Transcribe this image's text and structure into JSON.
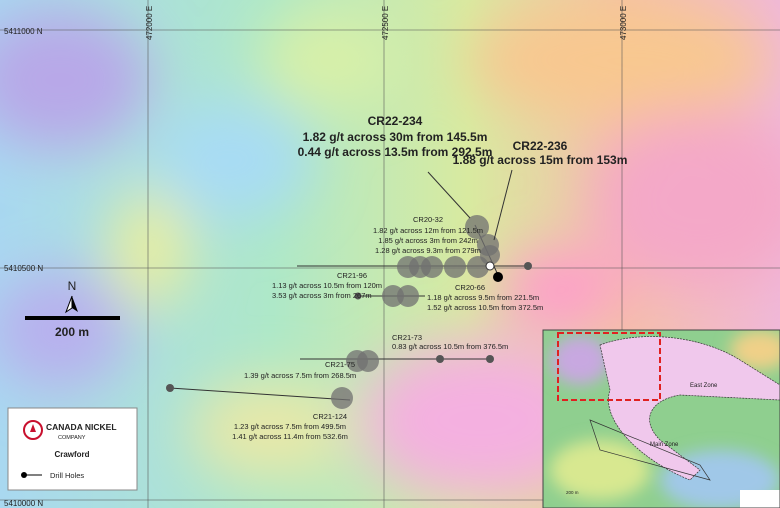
{
  "grid": {
    "northings": [
      "5411000 N",
      "5410500 N",
      "5410000 N"
    ],
    "eastings": [
      "472000 E",
      "472500 E",
      "473000 E"
    ]
  },
  "scale": {
    "north": "N",
    "label": "200 m"
  },
  "holes": [
    {
      "name": "CR22-234",
      "intercepts": [
        "1.82 g/t across 30m from 145.5m",
        "0.44 g/t across 13.5m from 292.5m"
      ]
    },
    {
      "name": "CR22-236",
      "intercepts": [
        "1.88 g/t across 15m from 153m"
      ]
    },
    {
      "name": "CR20-32",
      "intercepts": [
        "1.82 g/t across 12m from 121.5m",
        "1.85 g/t across 3m from 242m",
        "1.28 g/t across 9.3m from 279m"
      ]
    },
    {
      "name": "CR21-96",
      "intercepts": [
        "1.13 g/t across 10.5m from 120m",
        "3.53 g/t across 3m from 267m"
      ]
    },
    {
      "name": "CR20-66",
      "intercepts": [
        "1.18 g/t across 9.5m from 221.5m",
        "1.52 g/t across 10.5m from 372.5m"
      ]
    },
    {
      "name": "CR21-73",
      "intercepts": [
        "0.83 g/t across 10.5m from 376.5m"
      ]
    },
    {
      "name": "CR21-75",
      "intercepts": [
        "1.39 g/t across 7.5m from 268.5m"
      ]
    },
    {
      "name": "CR21-124",
      "intercepts": [
        "1.23 g/t across 7.5m from 499.5m",
        "1.41 g/t across 11.4m from 532.6m"
      ]
    }
  ],
  "legend": {
    "company": "CANADA NICKEL",
    "company_sub": "COMPANY",
    "project": "Crawford",
    "item": "Drill Holes"
  },
  "inset": {
    "zones": [
      "East Zone",
      "Main Zone"
    ],
    "scale": "200 m"
  }
}
